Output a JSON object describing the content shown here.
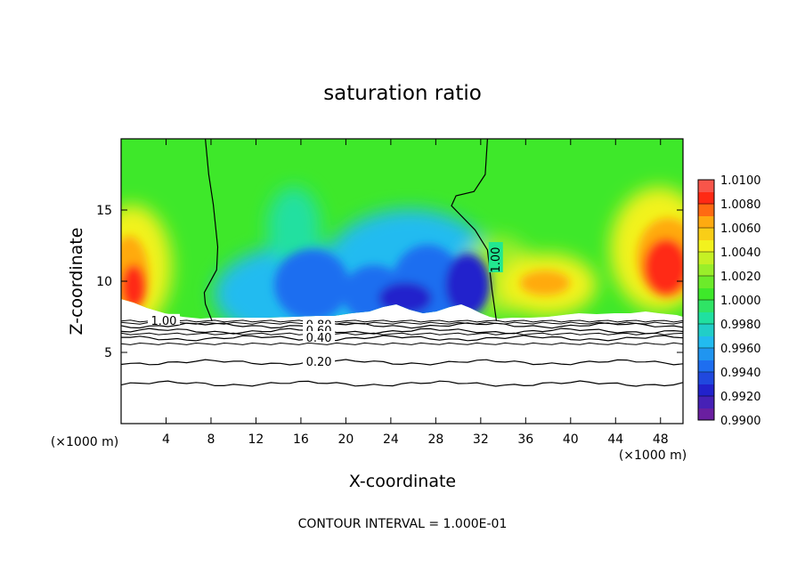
{
  "chart_data": {
    "type": "heatmap",
    "title": "saturation ratio",
    "xlabel": "X-coordinate",
    "ylabel": "Z-coordinate",
    "x_unit_left": "(×1000 m)",
    "x_unit_right": "(×1000 m)",
    "footer": "CONTOUR INTERVAL = 1.000E-01",
    "xlim": [
      0,
      50
    ],
    "ylim": [
      0,
      20
    ],
    "x_ticks": [
      4,
      8,
      12,
      16,
      20,
      24,
      28,
      32,
      36,
      40,
      44,
      48
    ],
    "x_tick_labels": [
      "4",
      "8",
      "12",
      "16",
      "20",
      "24",
      "28",
      "32",
      "36",
      "40",
      "44",
      "48"
    ],
    "y_ticks": [
      5,
      10,
      15
    ],
    "y_tick_labels": [
      "5",
      "10",
      "15"
    ],
    "colorbar": {
      "levels": [
        0.99,
        0.992,
        0.994,
        0.996,
        0.998,
        1.0,
        1.002,
        1.004,
        1.006,
        1.008,
        1.01
      ],
      "labels": [
        "0.9900",
        "0.9920",
        "0.9940",
        "0.9960",
        "0.9980",
        "1.0000",
        "1.0020",
        "1.0040",
        "1.0060",
        "1.0080",
        "1.0100"
      ],
      "colors": [
        "#6a1fa0",
        "#2222cc",
        "#1e6ef0",
        "#22bbf0",
        "#20e0a0",
        "#3ee82a",
        "#9aee2a",
        "#f2f21e",
        "#ffaa10",
        "#ff2a14",
        "#f08080"
      ]
    },
    "contour_labels": [
      "1.00",
      "1.00",
      "0.80",
      "0.60",
      "0.40",
      "0.20"
    ],
    "regions": [
      {
        "name": "upper background",
        "x": [
          0,
          50
        ],
        "z": [
          7,
          20
        ],
        "value": 1.0
      },
      {
        "name": "left boundary maximum",
        "x": [
          0,
          8
        ],
        "z": [
          7,
          15
        ],
        "value": 1.009
      },
      {
        "name": "central minimum",
        "x": [
          14,
          33
        ],
        "z": [
          7,
          13
        ],
        "value": 0.9925
      },
      {
        "name": "right moist area",
        "x": [
          34,
          44
        ],
        "z": [
          7,
          12
        ],
        "value": 1.003
      },
      {
        "name": "right boundary maximum",
        "x": [
          43,
          50
        ],
        "z": [
          9,
          15
        ],
        "value": 1.008
      }
    ],
    "contour_lines": [
      {
        "label": "1.00",
        "x": [
          7.5,
          7.8,
          8.2,
          8.6,
          8.5,
          7.4,
          7.5,
          8.1
        ],
        "z": [
          20,
          17.5,
          15.4,
          12.4,
          10.8,
          9.2,
          8.4,
          7.2
        ]
      },
      {
        "label": "1.00",
        "x": [
          32.6,
          32.4,
          31.4,
          29.8,
          29.4,
          31.5,
          32.6,
          33.0,
          33.4
        ],
        "z": [
          20,
          17.5,
          16.3,
          16.0,
          15.3,
          13.6,
          12.2,
          9.4,
          7.2
        ]
      },
      {
        "label": "0.80",
        "z_level": 6.9
      },
      {
        "label": "0.60",
        "z_level": 6.5
      },
      {
        "label": "0.40",
        "z_level": 6.0
      },
      {
        "label": "0.20",
        "z_level": 4.3
      },
      {
        "label": "",
        "z_level": 2.8
      }
    ]
  }
}
